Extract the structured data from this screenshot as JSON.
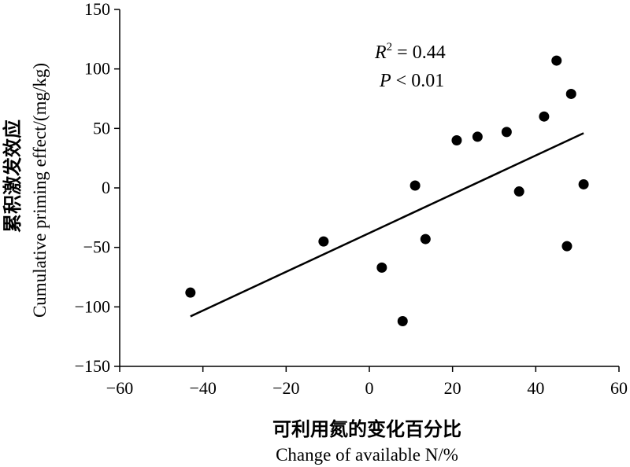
{
  "chart_data": {
    "type": "scatter",
    "xlabel_cn": "可利用氮的变化百分比",
    "xlabel_en": "Change of available N/%",
    "ylabel_cn": "累积激发效应",
    "ylabel_en": "Cumulative priming effect/(mg/kg)",
    "xlim": [
      -60,
      60
    ],
    "ylim": [
      -150,
      150
    ],
    "xticks": [
      -60,
      -40,
      -20,
      0,
      20,
      40,
      60
    ],
    "yticks": [
      -150,
      -100,
      -50,
      0,
      50,
      100,
      150
    ],
    "xtick_labels": [
      "−60",
      "−40",
      "−20",
      "0",
      "20",
      "40",
      "60"
    ],
    "ytick_labels": [
      "−150",
      "−100",
      "−50",
      "0",
      "50",
      "100",
      "150"
    ],
    "points": [
      {
        "x": -43,
        "y": -88
      },
      {
        "x": -11,
        "y": -45
      },
      {
        "x": 3,
        "y": -67
      },
      {
        "x": 8,
        "y": -112
      },
      {
        "x": 11,
        "y": 2
      },
      {
        "x": 13.5,
        "y": -43
      },
      {
        "x": 21,
        "y": 40
      },
      {
        "x": 26,
        "y": 43
      },
      {
        "x": 33,
        "y": 47
      },
      {
        "x": 36,
        "y": -3
      },
      {
        "x": 42,
        "y": 60
      },
      {
        "x": 45,
        "y": 107
      },
      {
        "x": 47.5,
        "y": -49
      },
      {
        "x": 48.5,
        "y": 79
      },
      {
        "x": 51.5,
        "y": 3
      }
    ],
    "trendline": {
      "x": [
        -43,
        51.5
      ],
      "y": [
        -108,
        46
      ]
    },
    "annotation": {
      "r_symbol": "R",
      "r_exp": "2",
      "r_value": " = 0.44",
      "p_symbol": "P",
      "p_value": " < 0.01"
    },
    "grid": false,
    "legend": "none"
  }
}
